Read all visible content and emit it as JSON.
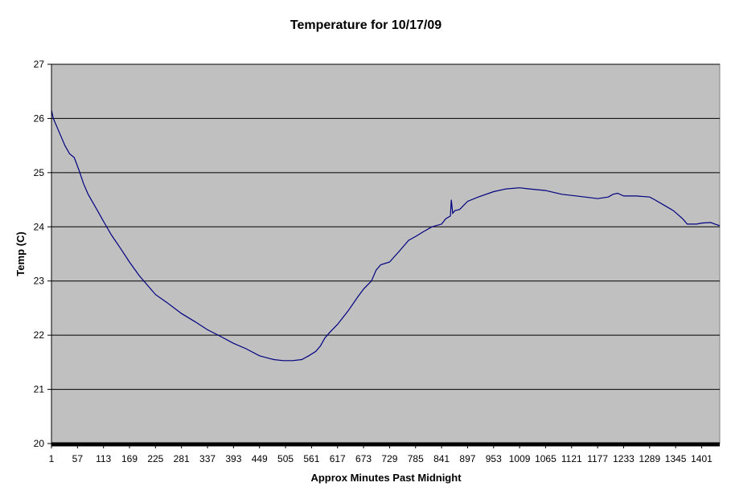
{
  "chart_data": {
    "type": "line",
    "title": "Temperature for 10/17/09",
    "xlabel": "Approx Minutes Past Midnight",
    "ylabel": "Temp (C)",
    "xlim": [
      1,
      1440
    ],
    "ylim": [
      20,
      27
    ],
    "y_ticks": [
      20,
      21,
      22,
      23,
      24,
      25,
      26,
      27
    ],
    "x_tick_labels": [
      "1",
      "57",
      "113",
      "169",
      "225",
      "281",
      "337",
      "393",
      "449",
      "505",
      "561",
      "617",
      "673",
      "729",
      "785",
      "841",
      "897",
      "953",
      "1009",
      "1065",
      "1121",
      "1177",
      "1233",
      "1289",
      "1345",
      "1401"
    ],
    "grid": true,
    "legend": "none",
    "colors": {
      "plot_background": "#c0c0c0",
      "line": "#000080",
      "grid": "#000000"
    },
    "series": [
      {
        "x": [
          1,
          5,
          10,
          20,
          30,
          40,
          50,
          60,
          70,
          80,
          90,
          100,
          113,
          130,
          150,
          169,
          190,
          210,
          225,
          250,
          281,
          310,
          337,
          360,
          393,
          420,
          449,
          470,
          480,
          500,
          520,
          540,
          555,
          570,
          580,
          590,
          600,
          617,
          640,
          660,
          673,
          690,
          700,
          710,
          729,
          750,
          770,
          785,
          800,
          820,
          841,
          850,
          860,
          862,
          865,
          870,
          880,
          897,
          920,
          953,
          980,
          1009,
          1030,
          1065,
          1100,
          1121,
          1150,
          1177,
          1200,
          1210,
          1220,
          1233,
          1260,
          1289,
          1300,
          1320,
          1340,
          1360,
          1370,
          1390,
          1401,
          1420,
          1430,
          1440
        ],
        "y": [
          26.15,
          26.0,
          25.9,
          25.7,
          25.5,
          25.35,
          25.28,
          25.05,
          24.8,
          24.6,
          24.45,
          24.3,
          24.1,
          23.85,
          23.6,
          23.35,
          23.1,
          22.9,
          22.75,
          22.6,
          22.4,
          22.25,
          22.1,
          22.0,
          21.85,
          21.75,
          21.62,
          21.57,
          21.55,
          21.53,
          21.53,
          21.55,
          21.62,
          21.7,
          21.8,
          21.95,
          22.05,
          22.2,
          22.45,
          22.7,
          22.85,
          23.0,
          23.2,
          23.3,
          23.35,
          23.55,
          23.75,
          23.82,
          23.9,
          24.0,
          24.05,
          24.15,
          24.2,
          24.5,
          24.25,
          24.3,
          24.32,
          24.47,
          24.55,
          24.65,
          24.7,
          24.72,
          24.7,
          24.67,
          24.6,
          24.58,
          24.55,
          24.52,
          24.55,
          24.6,
          24.62,
          24.57,
          24.57,
          24.55,
          24.5,
          24.4,
          24.3,
          24.15,
          24.05,
          24.05,
          24.07,
          24.08,
          24.05,
          24.02
        ]
      }
    ]
  }
}
